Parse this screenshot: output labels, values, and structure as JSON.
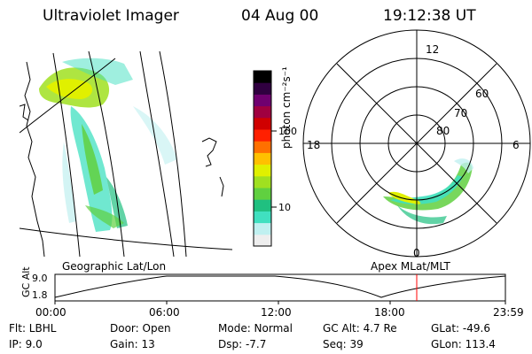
{
  "header": {
    "title": "Ultraviolet Imager",
    "date": "04 Aug 00",
    "time": "19:12:38 UT"
  },
  "map_panel": {
    "label": "Geographic Lat/Lon"
  },
  "colorbar": {
    "label": "photon cm⁻²s⁻¹",
    "ticks": [
      "100",
      "10"
    ],
    "colors": [
      "#eeeeee",
      "#c0f0f0",
      "#40e0c0",
      "#20c080",
      "#60d040",
      "#a0e020",
      "#e0f000",
      "#ffc000",
      "#ff7000",
      "#ff2000",
      "#d00000",
      "#a00040",
      "#700070",
      "#300040",
      "#000000"
    ]
  },
  "polar_panel": {
    "label": "Apex MLat/MLT",
    "mlt_labels": {
      "top": "12",
      "left": "18",
      "right": "6",
      "bottom": "0"
    },
    "lat_labels": [
      "60",
      "70",
      "80"
    ]
  },
  "altitude_plot": {
    "ylabel": "GC Alt",
    "y_ticks": [
      "9.0",
      "1.8"
    ],
    "x_ticks": [
      "00:00",
      "06:00",
      "12:00",
      "18:00",
      "23:59"
    ],
    "marker_color": "#ff0000"
  },
  "info": {
    "flt": "Flt:  LBHL",
    "ip": "IP:  9.0",
    "door": "Door:  Open",
    "gain": "Gain:  13",
    "mode": "Mode:  Normal",
    "dsp": "Dsp:     -7.7",
    "gcalt": "GC Alt:  4.7 Re",
    "seq": "Seq:  39",
    "glat": "GLat:   -49.6",
    "glon": "GLon:  113.4"
  }
}
